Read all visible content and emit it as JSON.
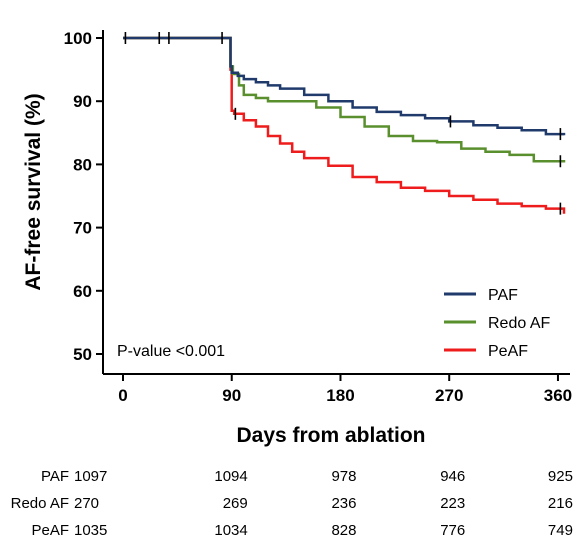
{
  "chart_data": {
    "type": "line",
    "title": "",
    "xlabel": "Days from ablation",
    "ylabel": "AF-free survival (%)",
    "xlim": [
      0,
      365
    ],
    "ylim": [
      48,
      100
    ],
    "xticks": [
      "0",
      "90",
      "180",
      "270",
      "360"
    ],
    "yticks": [
      "100",
      "90",
      "80",
      "70",
      "60",
      "50"
    ],
    "annotation": "P-value <0.001",
    "legend_position": "bottom-right",
    "grid": false,
    "series": [
      {
        "name": "PAF",
        "color": "#1f3a6b",
        "x": [
          0,
          88,
          89,
          90,
          95,
          100,
          110,
          120,
          130,
          150,
          170,
          190,
          210,
          230,
          250,
          270,
          290,
          310,
          330,
          350,
          365
        ],
        "y": [
          100,
          100,
          95.5,
          94.5,
          94.0,
          93.5,
          93.0,
          92.5,
          92.0,
          91.0,
          90.0,
          89.0,
          88.3,
          87.8,
          87.3,
          86.8,
          86.2,
          85.8,
          85.4,
          84.8,
          84.6
        ],
        "censor_x": [
          2,
          30,
          38,
          82,
          271,
          362
        ]
      },
      {
        "name": "Redo AF",
        "color": "#5a8f2e",
        "x": [
          0,
          88,
          89,
          91,
          96,
          100,
          110,
          120,
          140,
          160,
          180,
          200,
          220,
          240,
          260,
          280,
          300,
          320,
          340,
          365
        ],
        "y": [
          100,
          100,
          95.5,
          94.3,
          92.5,
          91.0,
          90.5,
          90.0,
          90.0,
          89.0,
          87.5,
          86.0,
          84.5,
          83.7,
          83.5,
          82.5,
          82.0,
          81.5,
          80.5,
          80.3
        ],
        "censor_x": [
          362
        ]
      },
      {
        "name": "PeAF",
        "color": "#ee1c1c",
        "x": [
          0,
          88,
          89,
          90,
          92,
          100,
          110,
          120,
          130,
          140,
          150,
          170,
          190,
          210,
          230,
          250,
          270,
          290,
          310,
          330,
          350,
          365
        ],
        "y": [
          100,
          100,
          95.0,
          88.5,
          88.0,
          87.0,
          86.0,
          84.5,
          83.3,
          82.0,
          81.0,
          79.8,
          78.0,
          77.2,
          76.3,
          75.8,
          75.0,
          74.4,
          73.8,
          73.4,
          73.0,
          72.2
        ],
        "censor_x": [
          93,
          362
        ]
      }
    ]
  },
  "risk_table": {
    "rows": [
      {
        "label": "PAF",
        "values": [
          "1097",
          "1094",
          "978",
          "946",
          "925"
        ]
      },
      {
        "label": "Redo AF",
        "values": [
          "270",
          "269",
          "236",
          "223",
          "216"
        ]
      },
      {
        "label": "PeAF",
        "values": [
          "1035",
          "1034",
          "828",
          "776",
          "749"
        ]
      }
    ]
  }
}
